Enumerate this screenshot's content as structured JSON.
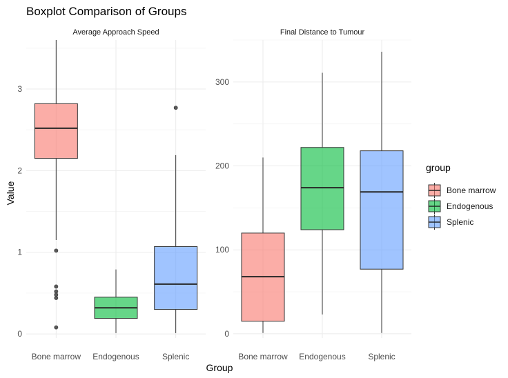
{
  "chart_data": {
    "type": "boxplot",
    "title": "Boxplot Comparison of Groups",
    "xlabel": "Group",
    "ylabel": "Value",
    "categories": [
      "Bone marrow",
      "Endogenous",
      "Splenic"
    ],
    "legend": {
      "title": "group",
      "position": "right",
      "entries": [
        {
          "label": "Bone marrow",
          "color": "#F8766D"
        },
        {
          "label": "Endogenous",
          "color": "#00BA38"
        },
        {
          "label": "Splenic",
          "color": "#619CFF"
        }
      ]
    },
    "facets": [
      {
        "title": "Average Approach Speed",
        "ylim": [
          -0.05,
          3.6
        ],
        "yticks": [
          0,
          1,
          2,
          3
        ],
        "yticklabels": [
          "0",
          "1",
          "2",
          "3"
        ],
        "minor_ticks": [
          0.5,
          1.5,
          2.5,
          3.5
        ],
        "boxes": [
          {
            "group": "Bone marrow",
            "whisker_low": 1.15,
            "q1": 2.15,
            "median": 2.52,
            "q3": 2.82,
            "whisker_high": 3.6,
            "outliers": [
              1.02,
              0.58,
              0.52,
              0.48,
              0.44,
              0.08
            ]
          },
          {
            "group": "Endogenous",
            "whisker_low": 0.01,
            "q1": 0.19,
            "median": 0.32,
            "q3": 0.45,
            "whisker_high": 0.79,
            "outliers": []
          },
          {
            "group": "Splenic",
            "whisker_low": 0.01,
            "q1": 0.3,
            "median": 0.61,
            "q3": 1.07,
            "whisker_high": 2.19,
            "outliers": [
              2.77
            ]
          }
        ]
      },
      {
        "title": "Final Distance to Tumour",
        "ylim": [
          -5,
          350
        ],
        "yticks": [
          0,
          100,
          200,
          300
        ],
        "yticklabels": [
          "0",
          "100",
          "200",
          "300"
        ],
        "minor_ticks": [
          50,
          150,
          250,
          350
        ],
        "boxes": [
          {
            "group": "Bone marrow",
            "whisker_low": 1,
            "q1": 15,
            "median": 68,
            "q3": 120,
            "whisker_high": 210,
            "outliers": []
          },
          {
            "group": "Endogenous",
            "whisker_low": 23,
            "q1": 124,
            "median": 174,
            "q3": 222,
            "whisker_high": 311,
            "outliers": []
          },
          {
            "group": "Splenic",
            "whisker_low": 1,
            "q1": 77,
            "median": 169,
            "q3": 218,
            "whisker_high": 336,
            "outliers": []
          }
        ]
      }
    ]
  }
}
